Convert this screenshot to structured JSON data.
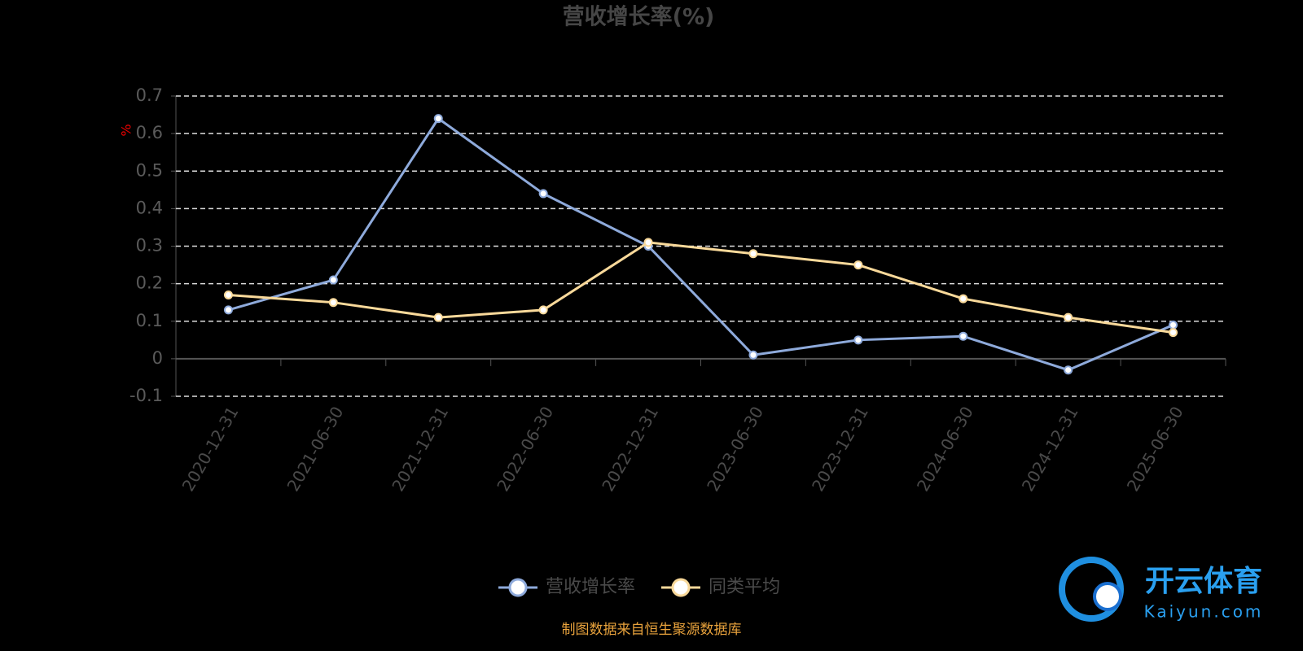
{
  "chart_data": {
    "type": "line",
    "title": "营收增长率(%)",
    "y_label": "%",
    "categories": [
      "2020-12-31",
      "2021-06-30",
      "2021-12-31",
      "2022-06-30",
      "2022-12-31",
      "2023-06-30",
      "2023-12-31",
      "2024-06-30",
      "2024-12-31",
      "2025-06-30"
    ],
    "series": [
      {
        "name": "营收增长率",
        "color": "#8eaadb",
        "values": [
          0.13,
          0.21,
          0.64,
          0.44,
          0.3,
          0.01,
          0.05,
          0.06,
          -0.03,
          0.09
        ]
      },
      {
        "name": "同类平均",
        "color": "#f9d99a",
        "values": [
          0.17,
          0.15,
          0.11,
          0.13,
          0.31,
          0.28,
          0.25,
          0.16,
          0.11,
          0.07
        ]
      }
    ],
    "ylim": [
      -0.1,
      0.7
    ],
    "yticks": [
      -0.1,
      0,
      0.1,
      0.2,
      0.3,
      0.4,
      0.5,
      0.6,
      0.7
    ],
    "grid": true,
    "legend": "bottom",
    "source": "制图数据来自恒生聚源数据库"
  },
  "watermark": {
    "brand": "开云体育",
    "site": "Kaiyun.com"
  }
}
